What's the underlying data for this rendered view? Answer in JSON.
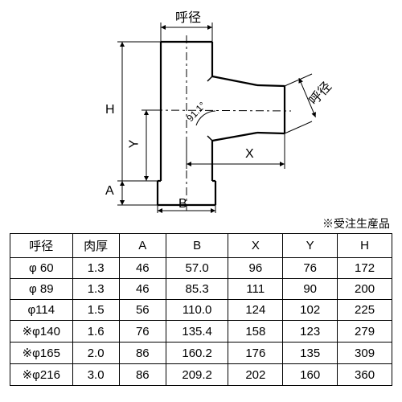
{
  "diagram": {
    "type": "engineering-drawing",
    "labels": {
      "top_dim": "呼径",
      "right_dim": "呼径",
      "H": "H",
      "Y": "Y",
      "A": "A",
      "B": "B",
      "X": "X",
      "angle": "91.1°"
    },
    "stroke_color": "#000000",
    "stroke_width_outline": 2.2,
    "stroke_width_dim": 1,
    "background": "#ffffff"
  },
  "note": "※受注生産品",
  "table": {
    "columns": [
      "呼径",
      "肉厚",
      "A",
      "B",
      "X",
      "Y",
      "H"
    ],
    "rows": [
      [
        "φ 60",
        "1.3",
        "46",
        "57.0",
        "96",
        "76",
        "172"
      ],
      [
        "φ 89",
        "1.3",
        "46",
        "85.3",
        "111",
        "90",
        "200"
      ],
      [
        "φ114",
        "1.5",
        "56",
        "110.0",
        "124",
        "102",
        "225"
      ],
      [
        "※φ140",
        "1.6",
        "76",
        "135.4",
        "158",
        "123",
        "279"
      ],
      [
        "※φ165",
        "2.0",
        "86",
        "160.2",
        "176",
        "135",
        "309"
      ],
      [
        "※φ216",
        "3.0",
        "86",
        "209.2",
        "202",
        "160",
        "360"
      ]
    ]
  }
}
